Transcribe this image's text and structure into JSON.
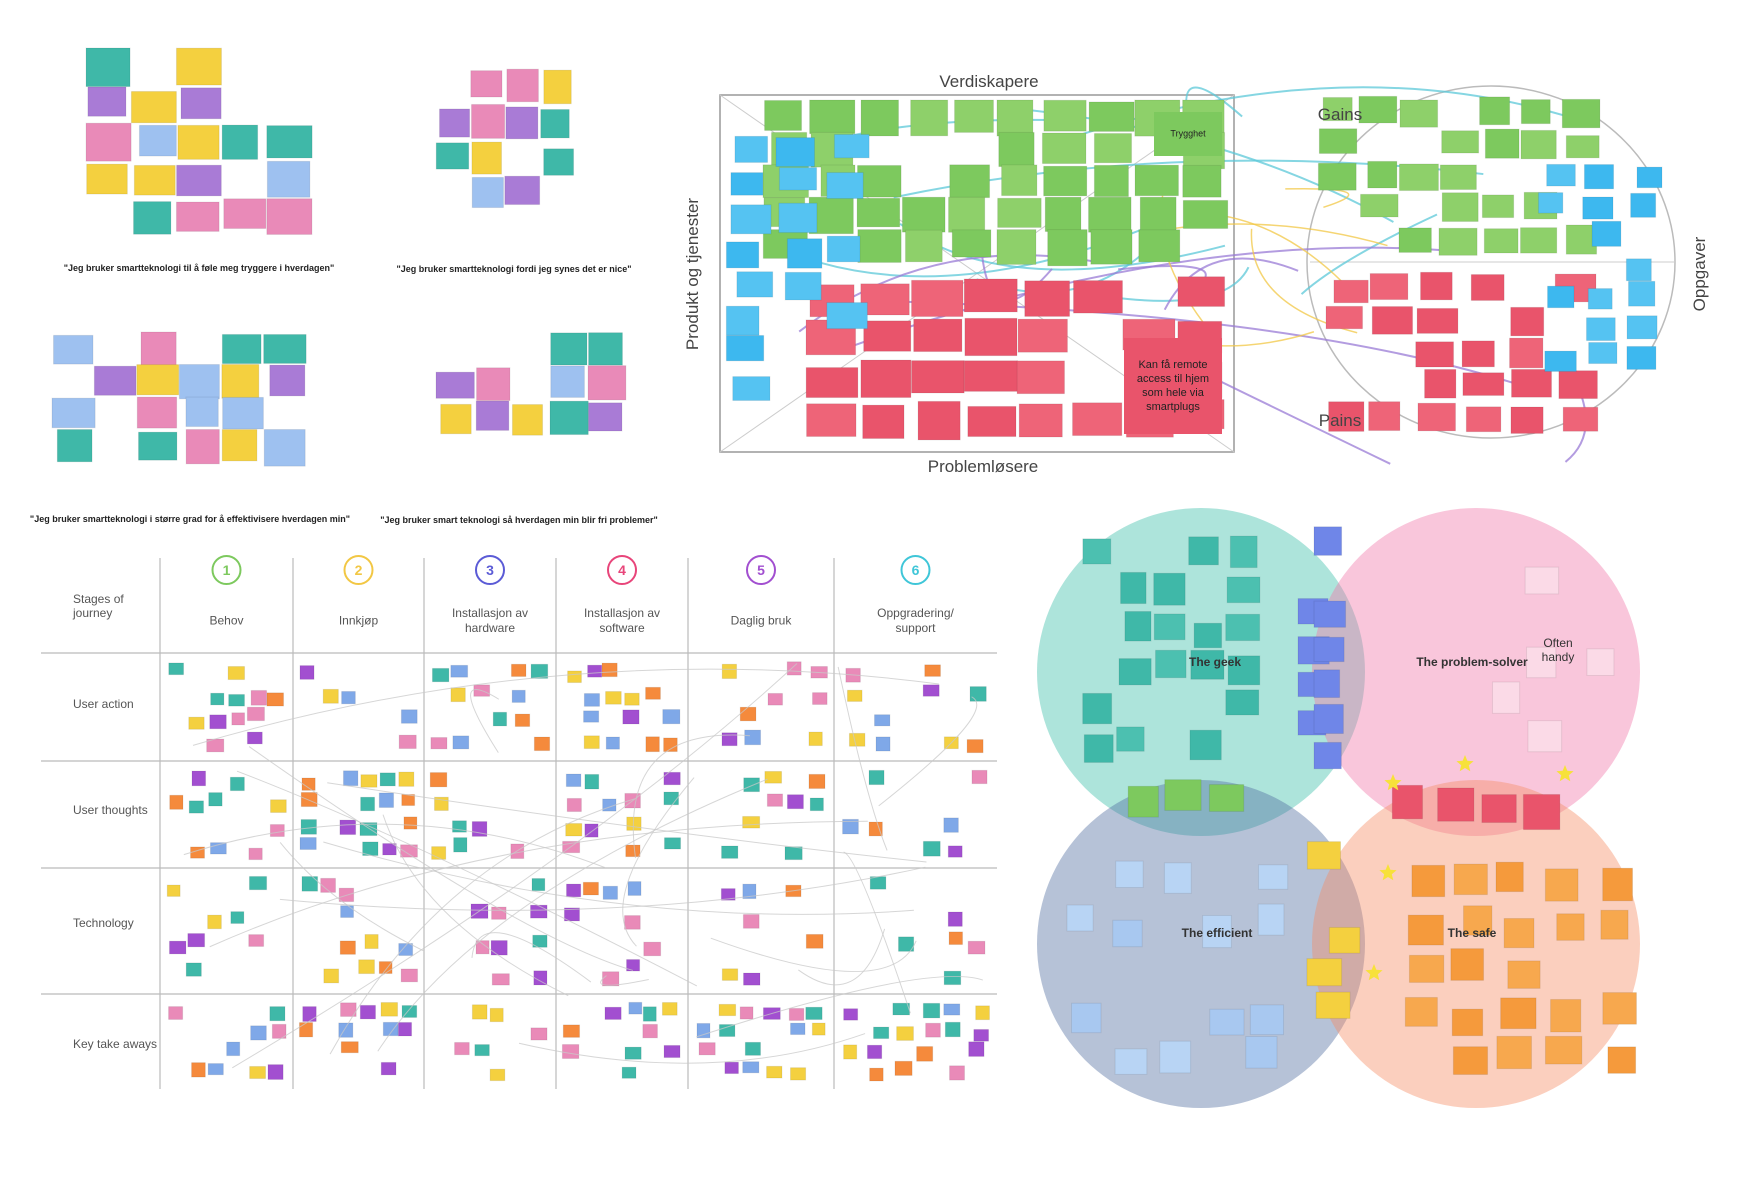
{
  "affinity_clusters": [
    {
      "caption": "\"Jeg bruker smartteknologi til å føle meg tryggere i hverdagen\""
    },
    {
      "caption": "\"Jeg bruker smartteknologi fordi jeg synes det er nice\""
    },
    {
      "caption": "\"Jeg bruker smartteknologi i større grad for å effektivisere hverdagen min\""
    },
    {
      "caption": "\"Jeg bruker smart teknologi så hverdagen min blir fri problemer\""
    }
  ],
  "value_proposition_canvas": {
    "value_creators": "Verdiskapere",
    "pain_relievers": "Problemløsere",
    "products_and_services": "Produkt og tjenester",
    "gains": "Gains",
    "pains": "Pains",
    "jobs": "Oppgaver",
    "notes": [
      "Trygghet",
      "Kan få remote access til hjem som hele via smartplugs"
    ]
  },
  "journey_map": {
    "row_header": "Stages of journey",
    "stages": [
      {
        "number": "1",
        "name": "Behov"
      },
      {
        "number": "2",
        "name": "Innkjøp"
      },
      {
        "number": "3",
        "name": "Installasjon av hardware"
      },
      {
        "number": "4",
        "name": "Installasjon av software"
      },
      {
        "number": "5",
        "name": "Daglig bruk"
      },
      {
        "number": "6",
        "name": "Oppgradering/ support"
      }
    ],
    "rows": [
      "User action",
      "User thoughts",
      "Technology",
      "Key take aways"
    ]
  },
  "persona_venn": {
    "personas": [
      "The geek",
      "The problem-solver",
      "The efficient",
      "The safe"
    ],
    "note": "Often handy"
  }
}
